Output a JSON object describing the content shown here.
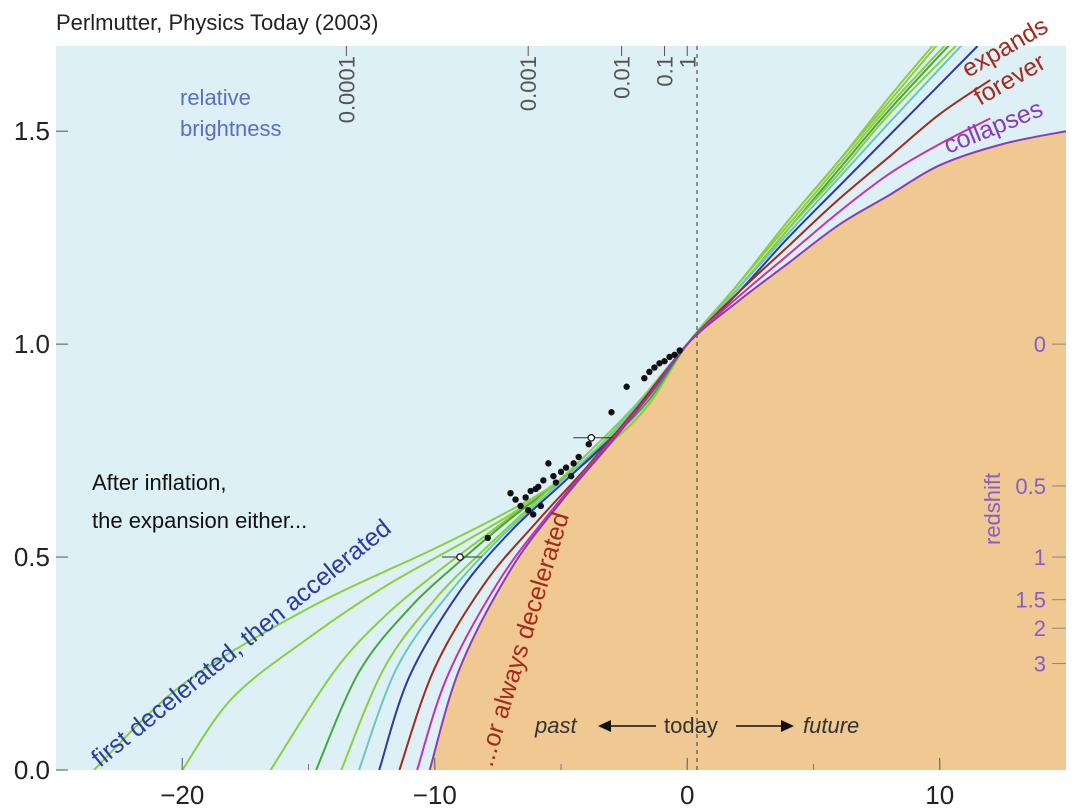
{
  "credit": "Perlmutter, Physics Today (2003)",
  "explanation": {
    "line1": "After inflation,",
    "line2": "the expansion either..."
  },
  "labels": {
    "relative_brightness_1": "relative",
    "relative_brightness_2": "brightness",
    "first_decelerated": "first decelerated, then accelerated",
    "always_decelerated": "...or always decelerated",
    "expands": "expands",
    "forever": "forever",
    "collapses": "collapses",
    "redshift": "redshift",
    "past": "past",
    "today": "today",
    "future": "future"
  },
  "colors": {
    "sky": "#dcf0f6",
    "tan": "#f0c891",
    "green": "#8ccf3c",
    "teal": "#66c8c0",
    "blue": "#2c3aa6",
    "red": "#a42a1c",
    "magenta": "#c832a8",
    "purple": "#8a3cb8"
  },
  "chart_data": {
    "type": "line",
    "title": "",
    "xlabel": "",
    "ylabel": "",
    "xlim": [
      -25,
      15
    ],
    "ylim": [
      0.0,
      1.7
    ],
    "x_ticks": [
      -20,
      -10,
      0,
      10
    ],
    "x_tick_labels": [
      "−20",
      "−10",
      "0",
      "10"
    ],
    "y_ticks": [
      0.0,
      0.5,
      1.0,
      1.5
    ],
    "y_tick_labels": [
      "0.0",
      "0.5",
      "1.0",
      "1.5"
    ],
    "brightness_scale": {
      "label": "relative brightness",
      "ticks": [
        {
          "label": "0.0001",
          "x": -13.5
        },
        {
          "label": "0.001",
          "x": -6.3
        },
        {
          "label": "0.01",
          "x": -2.6
        },
        {
          "label": "0.1",
          "x": -0.9
        },
        {
          "label": "1",
          "x": 0
        }
      ]
    },
    "redshift_scale": {
      "label": "redshift",
      "ticks": [
        {
          "label": "0",
          "y": 1.0
        },
        {
          "label": "0.5",
          "y": 0.667
        },
        {
          "label": "1",
          "y": 0.5
        },
        {
          "label": "1.5",
          "y": 0.4
        },
        {
          "label": "2",
          "y": 0.333
        },
        {
          "label": "3",
          "y": 0.25
        }
      ]
    },
    "series": [
      {
        "color": "#8ccf3c",
        "x": [
          -23.5,
          -20,
          -15,
          -10,
          -7,
          -5,
          -3,
          -1.5,
          0,
          2,
          4,
          6,
          8,
          10
        ],
        "y": [
          0.0,
          0.2,
          0.38,
          0.52,
          0.61,
          0.68,
          0.77,
          0.86,
          1.0,
          1.14,
          1.29,
          1.43,
          1.58,
          1.72
        ]
      },
      {
        "color": "#8ccf3c",
        "x": [
          -20,
          -18,
          -15,
          -12,
          -9,
          -7,
          -5,
          -3,
          -1.5,
          0,
          2,
          4,
          6,
          8,
          10
        ],
        "y": [
          0.0,
          0.17,
          0.31,
          0.43,
          0.53,
          0.6,
          0.68,
          0.77,
          0.86,
          1.0,
          1.14,
          1.29,
          1.43,
          1.57,
          1.71
        ]
      },
      {
        "color": "#8ccf3c",
        "x": [
          -16.5,
          -14,
          -12,
          -10,
          -8,
          -6,
          -4,
          -2,
          0,
          2,
          4,
          6,
          8,
          10.5
        ],
        "y": [
          0.0,
          0.23,
          0.36,
          0.46,
          0.55,
          0.64,
          0.73,
          0.85,
          1.0,
          1.14,
          1.28,
          1.42,
          1.56,
          1.72
        ]
      },
      {
        "color": "#44a83c",
        "x": [
          -14.7,
          -13,
          -11,
          -9,
          -7,
          -5,
          -3,
          -1.5,
          0,
          2,
          4,
          6,
          8,
          10.5
        ],
        "y": [
          0.0,
          0.23,
          0.38,
          0.49,
          0.59,
          0.68,
          0.78,
          0.87,
          1.0,
          1.13,
          1.27,
          1.41,
          1.55,
          1.71
        ]
      },
      {
        "color": "#8ccf3c",
        "x": [
          -13.7,
          -12,
          -10,
          -8,
          -6,
          -4,
          -2,
          0,
          2,
          4,
          6,
          8,
          10.8
        ],
        "y": [
          0.0,
          0.24,
          0.4,
          0.52,
          0.63,
          0.74,
          0.86,
          1.0,
          1.13,
          1.27,
          1.4,
          1.54,
          1.71
        ]
      },
      {
        "color": "#66c8c0",
        "x": [
          -13.0,
          -11.5,
          -9.5,
          -7.5,
          -5.5,
          -3.5,
          -1.5,
          0,
          2,
          4,
          6,
          8,
          11
        ],
        "y": [
          0.0,
          0.24,
          0.41,
          0.54,
          0.65,
          0.76,
          0.89,
          1.0,
          1.13,
          1.26,
          1.39,
          1.52,
          1.71
        ]
      },
      {
        "color": "#2c3aa6",
        "x": [
          -12.2,
          -11,
          -9,
          -7,
          -5,
          -3,
          -1.5,
          0,
          2,
          4,
          6,
          8,
          11.5
        ],
        "y": [
          0.0,
          0.22,
          0.42,
          0.56,
          0.67,
          0.78,
          0.88,
          1.0,
          1.12,
          1.25,
          1.37,
          1.49,
          1.7
        ]
      },
      {
        "color": "#a42a1c",
        "x": [
          -11.4,
          -10,
          -8,
          -6,
          -4,
          -2,
          0,
          2,
          4,
          6,
          8,
          10,
          12
        ],
        "y": [
          0.0,
          0.24,
          0.44,
          0.58,
          0.71,
          0.85,
          1.0,
          1.12,
          1.23,
          1.34,
          1.44,
          1.54,
          1.62
        ]
      },
      {
        "color": "#c832a8",
        "x": [
          -10.7,
          -9.5,
          -7.5,
          -5.5,
          -3.5,
          -1.5,
          0,
          2,
          4,
          6,
          8,
          10,
          12
        ],
        "y": [
          0.0,
          0.22,
          0.44,
          0.6,
          0.74,
          0.88,
          1.0,
          1.11,
          1.21,
          1.31,
          1.4,
          1.47,
          1.53
        ]
      },
      {
        "color": "#8a3cb8",
        "x": [
          -10.2,
          -9,
          -7,
          -5,
          -3,
          -1.5,
          0,
          2,
          4,
          6,
          8,
          10,
          12.5,
          15
        ],
        "y": [
          0.0,
          0.24,
          0.47,
          0.63,
          0.77,
          0.88,
          1.0,
          1.1,
          1.19,
          1.28,
          1.35,
          1.42,
          1.47,
          1.5
        ]
      }
    ],
    "supernovae": [
      {
        "x": -0.3,
        "y": 0.985
      },
      {
        "x": -0.5,
        "y": 0.975
      },
      {
        "x": -0.7,
        "y": 0.97
      },
      {
        "x": -0.9,
        "y": 0.96
      },
      {
        "x": -1.1,
        "y": 0.955
      },
      {
        "x": -1.3,
        "y": 0.945
      },
      {
        "x": -1.5,
        "y": 0.935
      },
      {
        "x": -1.7,
        "y": 0.92
      },
      {
        "x": -2.4,
        "y": 0.9
      },
      {
        "x": -3.0,
        "y": 0.84
      },
      {
        "x": -3.9,
        "y": 0.765
      },
      {
        "x": -4.3,
        "y": 0.735
      },
      {
        "x": -4.5,
        "y": 0.72
      },
      {
        "x": -4.8,
        "y": 0.71
      },
      {
        "x": -5.0,
        "y": 0.7
      },
      {
        "x": -5.3,
        "y": 0.69
      },
      {
        "x": -5.5,
        "y": 0.72
      },
      {
        "x": -5.7,
        "y": 0.68
      },
      {
        "x": -5.9,
        "y": 0.665
      },
      {
        "x": -6.0,
        "y": 0.66
      },
      {
        "x": -6.2,
        "y": 0.655
      },
      {
        "x": -6.4,
        "y": 0.64
      },
      {
        "x": -6.6,
        "y": 0.62
      },
      {
        "x": -6.8,
        "y": 0.635
      },
      {
        "x": -7.0,
        "y": 0.65
      },
      {
        "x": -6.1,
        "y": 0.6
      },
      {
        "x": -6.3,
        "y": 0.61
      },
      {
        "x": -5.8,
        "y": 0.62
      },
      {
        "x": -5.2,
        "y": 0.675
      },
      {
        "x": -4.6,
        "y": 0.69
      },
      {
        "x": -7.9,
        "y": 0.545
      }
    ],
    "supernovae_open": [
      {
        "x": -9.0,
        "y": 0.5
      },
      {
        "x": -3.8,
        "y": 0.78
      }
    ]
  }
}
